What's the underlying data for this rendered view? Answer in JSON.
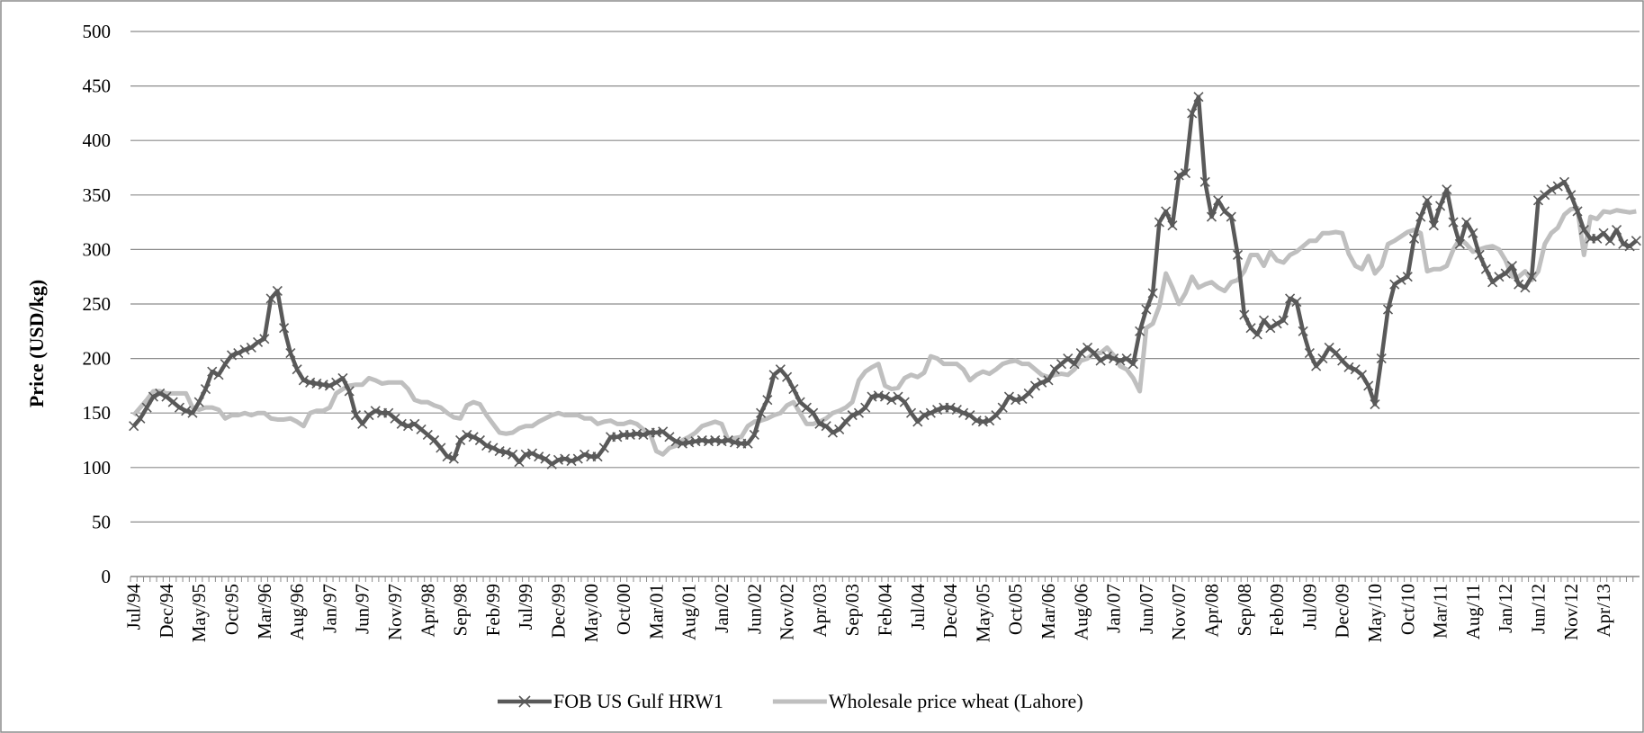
{
  "chart_data": {
    "type": "line",
    "y_label": "Price (USD/kg)",
    "categories": [
      "Jul/94",
      null,
      null,
      null,
      null,
      "Dec/94",
      null,
      null,
      null,
      null,
      "May/95",
      null,
      null,
      null,
      null,
      "Oct/95",
      null,
      null,
      null,
      null,
      "Mar/96",
      null,
      null,
      null,
      null,
      "Aug/96",
      null,
      null,
      null,
      null,
      "Jan/97",
      null,
      null,
      null,
      null,
      "Jun/97",
      null,
      null,
      null,
      null,
      "Nov/97",
      null,
      null,
      null,
      null,
      "Apr/98",
      null,
      null,
      null,
      null,
      "Sep/98",
      null,
      null,
      null,
      null,
      "Feb/99",
      null,
      null,
      null,
      null,
      "Jul/99",
      null,
      null,
      null,
      null,
      "Dec/99",
      null,
      null,
      null,
      null,
      "May/00",
      null,
      null,
      null,
      null,
      "Oct/00",
      null,
      null,
      null,
      null,
      "Mar/01",
      null,
      null,
      null,
      null,
      "Aug/01",
      null,
      null,
      null,
      null,
      "Jan/02",
      null,
      null,
      null,
      null,
      "Jun/02",
      null,
      null,
      null,
      null,
      "Nov/02",
      null,
      null,
      null,
      null,
      "Apr/03",
      null,
      null,
      null,
      null,
      "Sep/03",
      null,
      null,
      null,
      null,
      "Feb/04",
      null,
      null,
      null,
      null,
      "Jul/04",
      null,
      null,
      null,
      null,
      "Dec/04",
      null,
      null,
      null,
      null,
      "May/05",
      null,
      null,
      null,
      null,
      "Oct/05",
      null,
      null,
      null,
      null,
      "Mar/06",
      null,
      null,
      null,
      null,
      "Aug/06",
      null,
      null,
      null,
      null,
      "Jan/07",
      null,
      null,
      null,
      null,
      "Jun/07",
      null,
      null,
      null,
      null,
      "Nov/07",
      null,
      null,
      null,
      null,
      "Apr/08",
      null,
      null,
      null,
      null,
      "Sep/08",
      null,
      null,
      null,
      null,
      "Feb/09",
      null,
      null,
      null,
      null,
      "Jul/09",
      null,
      null,
      null,
      null,
      "Dec/09",
      null,
      null,
      null,
      null,
      "May/10",
      null,
      null,
      null,
      null,
      "Oct/10",
      null,
      null,
      null,
      null,
      "Mar/11",
      null,
      null,
      null,
      null,
      "Aug/11",
      null,
      null,
      null,
      null,
      "Jan/12",
      null,
      null,
      null,
      null,
      "Jun/12",
      null,
      null,
      null,
      null,
      "Nov/12",
      null,
      null,
      null,
      null,
      "Apr/13",
      null,
      null,
      null,
      null,
      null
    ],
    "series": [
      {
        "name": "FOB US Gulf HRW1",
        "color": "#595959",
        "marker": "x",
        "values": [
          138,
          145,
          155,
          165,
          168,
          165,
          160,
          155,
          152,
          150,
          160,
          172,
          188,
          185,
          195,
          203,
          205,
          208,
          210,
          215,
          218,
          255,
          262,
          228,
          205,
          190,
          180,
          178,
          177,
          176,
          175,
          178,
          182,
          170,
          148,
          140,
          148,
          152,
          150,
          150,
          145,
          140,
          138,
          140,
          135,
          130,
          125,
          118,
          110,
          108,
          125,
          130,
          128,
          125,
          120,
          118,
          115,
          114,
          112,
          105,
          112,
          113,
          110,
          108,
          103,
          107,
          108,
          106,
          108,
          112,
          110,
          110,
          118,
          128,
          128,
          130,
          130,
          131,
          130,
          132,
          132,
          133,
          128,
          124,
          122,
          123,
          124,
          125,
          124,
          125,
          124,
          125,
          123,
          122,
          122,
          130,
          150,
          162,
          185,
          190,
          183,
          172,
          160,
          155,
          150,
          140,
          138,
          132,
          135,
          142,
          148,
          150,
          155,
          165,
          166,
          165,
          162,
          165,
          160,
          150,
          142,
          148,
          150,
          153,
          155,
          155,
          153,
          150,
          148,
          143,
          142,
          143,
          148,
          155,
          165,
          162,
          163,
          168,
          175,
          178,
          180,
          190,
          195,
          200,
          195,
          205,
          210,
          205,
          198,
          202,
          200,
          198,
          200,
          195,
          225,
          245,
          260,
          325,
          335,
          322,
          368,
          370,
          425,
          440,
          362,
          330,
          345,
          335,
          330,
          295,
          240,
          228,
          222,
          235,
          228,
          232,
          235,
          255,
          252,
          225,
          205,
          193,
          200,
          210,
          205,
          198,
          192,
          190,
          185,
          175,
          158,
          200,
          245,
          268,
          272,
          275,
          310,
          330,
          345,
          322,
          340,
          355,
          325,
          305,
          325,
          315,
          295,
          282,
          270,
          275,
          278,
          285,
          268,
          265,
          275,
          345,
          350,
          355,
          358,
          362,
          350,
          335,
          318,
          310,
          310,
          315,
          308,
          318,
          305,
          303,
          308
        ]
      },
      {
        "name": "Wholesale price wheat (Lahore)",
        "color": "#bfbfbf",
        "values": [
          148,
          155,
          162,
          170,
          170,
          168,
          168,
          168,
          168,
          155,
          153,
          155,
          155,
          153,
          145,
          148,
          148,
          150,
          148,
          150,
          150,
          145,
          144,
          144,
          145,
          142,
          138,
          150,
          152,
          152,
          155,
          168,
          172,
          175,
          176,
          176,
          182,
          180,
          177,
          178,
          178,
          178,
          172,
          162,
          160,
          160,
          157,
          155,
          150,
          146,
          145,
          157,
          160,
          158,
          148,
          140,
          132,
          131,
          132,
          136,
          138,
          138,
          142,
          145,
          148,
          150,
          148,
          148,
          148,
          145,
          145,
          140,
          142,
          143,
          140,
          140,
          142,
          140,
          135,
          132,
          115,
          112,
          118,
          120,
          125,
          128,
          132,
          138,
          140,
          142,
          140,
          125,
          127,
          128,
          138,
          142,
          143,
          145,
          148,
          150,
          157,
          160,
          150,
          140,
          140,
          142,
          145,
          150,
          152,
          155,
          160,
          180,
          188,
          192,
          195,
          175,
          172,
          173,
          182,
          185,
          183,
          187,
          202,
          200,
          195,
          195,
          195,
          190,
          180,
          185,
          188,
          186,
          190,
          195,
          197,
          198,
          195,
          195,
          190,
          185,
          183,
          185,
          186,
          185,
          190,
          198,
          200,
          205,
          205,
          210,
          203,
          193,
          190,
          182,
          170,
          228,
          232,
          248,
          278,
          265,
          250,
          260,
          275,
          265,
          268,
          270,
          265,
          262,
          270,
          272,
          280,
          295,
          295,
          285,
          298,
          290,
          288,
          295,
          298,
          303,
          308,
          308,
          315,
          315,
          316,
          315,
          296,
          285,
          282,
          294,
          278,
          285,
          305,
          308,
          312,
          316,
          318,
          315,
          280,
          282,
          282,
          285,
          300,
          310,
          305,
          298,
          300,
          302,
          303,
          300,
          290,
          275,
          275,
          280,
          272,
          280,
          305,
          315,
          320,
          332,
          337,
          338,
          295,
          330,
          328,
          335,
          334,
          336,
          335,
          334,
          335
        ]
      }
    ],
    "ylim": [
      0,
      500
    ],
    "yticks": [
      0,
      50,
      100,
      150,
      200,
      250,
      300,
      350,
      400,
      450,
      500
    ],
    "grid": true,
    "legend": "bottom"
  }
}
